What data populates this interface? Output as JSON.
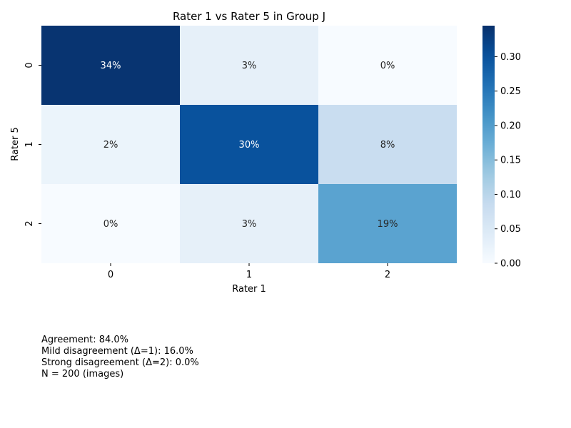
{
  "chart_data": {
    "type": "heatmap",
    "title": "Rater 1 vs Rater 5 in Group J",
    "xlabel": "Rater 1",
    "ylabel": "Rater 5",
    "x_categories": [
      "0",
      "1",
      "2"
    ],
    "y_categories": [
      "0",
      "1",
      "2"
    ],
    "values": [
      [
        0.34,
        0.03,
        0.0
      ],
      [
        0.02,
        0.3,
        0.08
      ],
      [
        0.0,
        0.03,
        0.19
      ]
    ],
    "cell_labels": [
      [
        "34%",
        "3%",
        "0%"
      ],
      [
        "2%",
        "30%",
        "8%"
      ],
      [
        "0%",
        "3%",
        "19%"
      ]
    ],
    "colormap": "Blues",
    "colorbar": {
      "range": [
        0.0,
        0.345
      ],
      "ticks": [
        "0.00",
        "0.05",
        "0.10",
        "0.15",
        "0.20",
        "0.25",
        "0.30"
      ]
    },
    "colors": {
      "low": "#f7fbff",
      "high": "#08306b"
    }
  },
  "stats": {
    "agreement": "Agreement: 84.0%",
    "mild": "Mild disagreement (Δ=1): 16.0%",
    "strong": "Strong disagreement (Δ=2): 0.0%",
    "n": "N = 200 (images)"
  }
}
